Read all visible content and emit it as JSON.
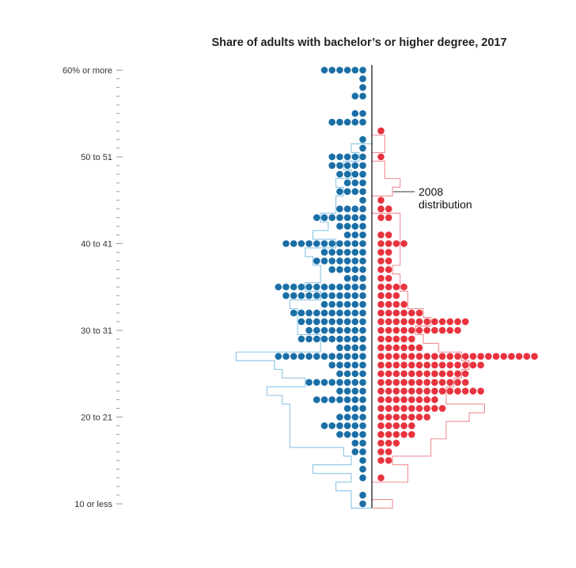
{
  "chart_data": {
    "type": "dot-histogram",
    "title": "Share of adults with bachelor’s or higher degree, 2017",
    "annotation": [
      "2008",
      "distribution"
    ],
    "y_ticks": [
      {
        "value": 60,
        "label": "60% or more"
      },
      {
        "value": 50,
        "label": "50 to 51"
      },
      {
        "value": 40,
        "label": "40 to 41"
      },
      {
        "value": 30,
        "label": "30 to 31"
      },
      {
        "value": 20,
        "label": "20 to 21"
      },
      {
        "value": 10,
        "label": "10 or less"
      }
    ],
    "bins": [
      60,
      59,
      58,
      57,
      56,
      55,
      54,
      53,
      52,
      51,
      50,
      49,
      48,
      47,
      46,
      45,
      44,
      43,
      42,
      41,
      40,
      39,
      38,
      37,
      36,
      35,
      34,
      33,
      32,
      31,
      30,
      29,
      28,
      27,
      26,
      25,
      24,
      23,
      22,
      21,
      20,
      19,
      18,
      17,
      16,
      15,
      14,
      13,
      12,
      11,
      10
    ],
    "series": [
      {
        "side": "left",
        "color": "#1a6fa6",
        "counts_2017": [
          6,
          1,
          1,
          2,
          0,
          2,
          5,
          0,
          1,
          1,
          5,
          5,
          4,
          3,
          4,
          1,
          4,
          7,
          4,
          3,
          11,
          6,
          7,
          5,
          3,
          12,
          11,
          6,
          10,
          9,
          8,
          9,
          4,
          12,
          5,
          4,
          8,
          4,
          7,
          3,
          4,
          6,
          4,
          2,
          2,
          1,
          1,
          1,
          0,
          1,
          1
        ],
        "counts_2008": [
          0,
          0,
          0,
          0,
          0,
          0,
          0,
          0,
          0,
          2,
          1,
          3,
          2,
          4,
          3,
          4,
          4,
          6,
          5,
          7,
          4,
          8,
          7,
          6,
          6,
          8,
          6,
          10,
          9,
          9,
          9,
          6,
          6,
          17,
          12,
          11,
          8,
          13,
          11,
          10,
          10,
          10,
          10,
          10,
          3,
          2,
          7,
          2,
          4,
          2,
          2
        ]
      },
      {
        "side": "right",
        "color": "#e8333e",
        "counts_2017": [
          0,
          0,
          0,
          0,
          0,
          0,
          0,
          1,
          0,
          0,
          1,
          0,
          0,
          0,
          0,
          1,
          2,
          2,
          0,
          2,
          4,
          2,
          2,
          2,
          2,
          4,
          3,
          4,
          6,
          12,
          11,
          5,
          6,
          21,
          14,
          12,
          12,
          14,
          8,
          9,
          7,
          5,
          5,
          3,
          2,
          2,
          0,
          1,
          0,
          0,
          0
        ],
        "counts_2008": [
          0,
          0,
          0,
          0,
          0,
          0,
          0,
          0,
          1,
          1,
          0,
          1,
          1,
          3,
          2,
          0,
          0,
          3,
          3,
          3,
          3,
          3,
          3,
          2,
          3,
          3,
          4,
          4,
          6,
          7,
          5,
          6,
          8,
          11,
          12,
          11,
          10,
          9,
          9,
          14,
          12,
          9,
          9,
          7,
          7,
          2,
          4,
          4,
          0,
          0,
          2
        ]
      }
    ]
  }
}
